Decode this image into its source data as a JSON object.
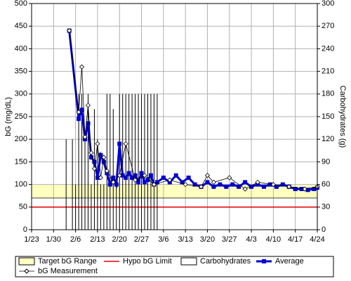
{
  "chart_data": {
    "type": "line",
    "xlim": [
      "1/23",
      "4/24"
    ],
    "xticks": [
      "1/23",
      "1/30",
      "2/6",
      "2/13",
      "2/20",
      "2/27",
      "3/6",
      "3/13",
      "3/20",
      "3/27",
      "4/3",
      "4/10",
      "4/17",
      "4/24"
    ],
    "ylabel": "bG (mg/dL)",
    "ylim": [
      0,
      500
    ],
    "yticks": [
      0,
      50,
      100,
      150,
      200,
      250,
      300,
      350,
      400,
      450,
      500
    ],
    "y2label": "Carbohydrates (g)",
    "y2lim": [
      0,
      300
    ],
    "y2ticks": [
      0,
      30,
      60,
      90,
      120,
      150,
      180,
      210,
      240,
      270,
      300
    ],
    "grid": true,
    "legend": "bottom",
    "target_range": {
      "name": "Target bG Range",
      "range": [
        70,
        100
      ],
      "color": "#ffffc0"
    },
    "hypo_limit": {
      "name": "Hypo bG Limit",
      "value": 50,
      "color": "#e00000"
    },
    "series": [
      {
        "name": "Carbohydrates",
        "kind": "carbs",
        "axis": "y2",
        "color": "#000000",
        "x": [
          "2/3",
          "2/5",
          "2/6",
          "2/7",
          "2/8",
          "2/9",
          "2/10",
          "2/11",
          "2/12",
          "2/13",
          "2/14",
          "2/15",
          "2/16",
          "2/17",
          "2/18",
          "2/19",
          "2/20",
          "2/21",
          "2/22",
          "2/23",
          "2/24",
          "2/25",
          "2/26",
          "2/27",
          "2/28",
          "3/1",
          "3/2",
          "3/3",
          "3/4"
        ],
        "values": [
          120,
          120,
          60,
          180,
          180,
          120,
          180,
          60,
          160,
          120,
          60,
          60,
          180,
          180,
          160,
          60,
          180,
          180,
          180,
          180,
          180,
          180,
          180,
          180,
          180,
          180,
          180,
          180,
          180
        ]
      },
      {
        "name": "Average",
        "kind": "average",
        "color": "#0000cc",
        "x": [
          "2/4",
          "2/7",
          "2/8",
          "2/9",
          "2/10",
          "2/11",
          "2/12",
          "2/13",
          "2/14",
          "2/15",
          "2/16",
          "2/17",
          "2/18",
          "2/19",
          "2/20",
          "2/21",
          "2/22",
          "2/23",
          "2/24",
          "2/25",
          "2/26",
          "2/27",
          "2/28",
          "3/1",
          "3/2",
          "3/3",
          "3/4",
          "3/6",
          "3/8",
          "3/10",
          "3/12",
          "3/14",
          "3/16",
          "3/18",
          "3/20",
          "3/22",
          "3/24",
          "3/26",
          "3/28",
          "3/30",
          "4/1",
          "4/3",
          "4/5",
          "4/7",
          "4/9",
          "4/11",
          "4/13",
          "4/15",
          "4/17",
          "4/19",
          "4/21",
          "4/23",
          "4/24"
        ],
        "values": [
          440,
          245,
          265,
          200,
          235,
          160,
          150,
          115,
          165,
          150,
          125,
          100,
          115,
          100,
          190,
          120,
          115,
          125,
          115,
          120,
          105,
          125,
          105,
          110,
          120,
          100,
          105,
          115,
          105,
          120,
          105,
          115,
          100,
          95,
          105,
          95,
          100,
          95,
          100,
          95,
          105,
          95,
          100,
          95,
          100,
          95,
          100,
          95,
          90,
          90,
          88,
          90,
          93
        ]
      },
      {
        "name": "bG Measurement",
        "kind": "measurement",
        "color": "#000000",
        "x": [
          "2/4",
          "2/7",
          "2/8",
          "2/9",
          "2/10",
          "2/11",
          "2/12",
          "2/13",
          "2/14",
          "2/15",
          "2/16",
          "2/18",
          "2/20",
          "2/22",
          "2/25",
          "2/28",
          "3/3",
          "3/8",
          "3/13",
          "3/18",
          "3/20",
          "3/22",
          "3/27",
          "4/1",
          "4/5",
          "4/10",
          "4/15",
          "4/20",
          "4/24"
        ],
        "values": [
          440,
          260,
          360,
          205,
          275,
          170,
          135,
          190,
          115,
          160,
          130,
          105,
          120,
          190,
          110,
          120,
          100,
          110,
          100,
          95,
          120,
          105,
          115,
          90,
          105,
          100,
          95,
          90,
          95
        ]
      }
    ]
  }
}
